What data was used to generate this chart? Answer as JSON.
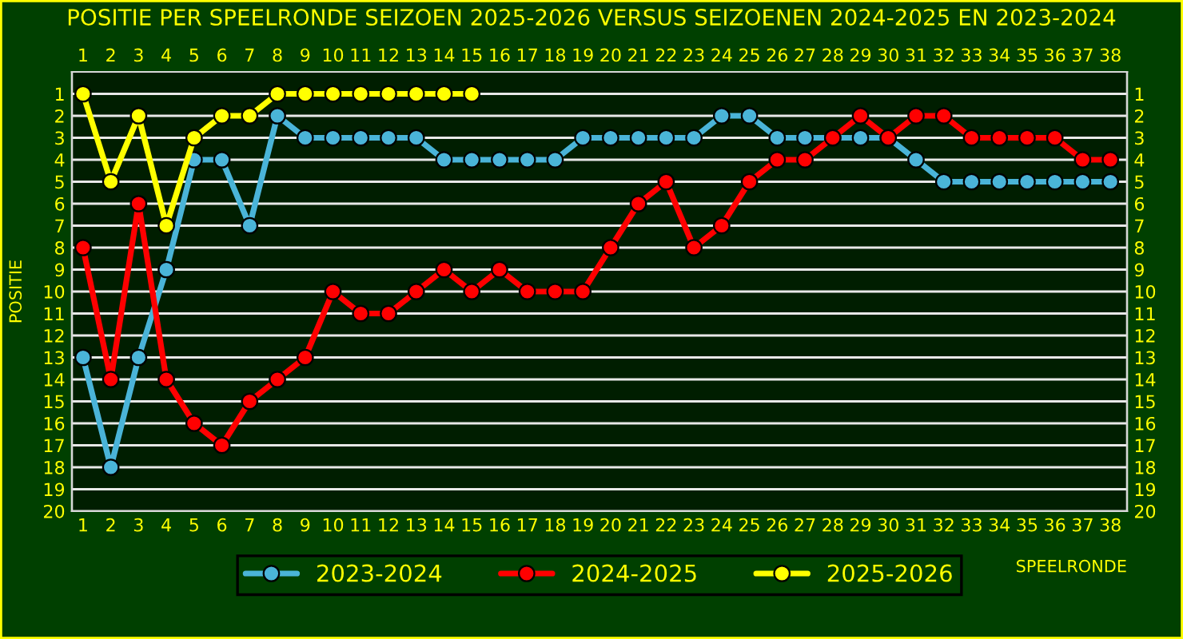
{
  "chart_data": {
    "type": "line",
    "title": "POSITIE PER SPEELRONDE SEIZOEN 2025-2026 VERSUS SEIZOENEN 2024-2025 EN 2023-2024",
    "xlabel": "SPEELRONDE",
    "ylabel": "POSITIE",
    "x": [
      1,
      2,
      3,
      4,
      5,
      6,
      7,
      8,
      9,
      10,
      11,
      12,
      13,
      14,
      15,
      16,
      17,
      18,
      19,
      20,
      21,
      22,
      23,
      24,
      25,
      26,
      27,
      28,
      29,
      30,
      31,
      32,
      33,
      34,
      35,
      36,
      37,
      38
    ],
    "series": [
      {
        "name": "2023-2024",
        "color": "#4ab4d8",
        "values": [
          13,
          18,
          13,
          9,
          4,
          4,
          7,
          2,
          3,
          3,
          3,
          3,
          3,
          4,
          4,
          4,
          4,
          4,
          3,
          3,
          3,
          3,
          3,
          2,
          2,
          3,
          3,
          3,
          3,
          3,
          4,
          5,
          5,
          5,
          5,
          5,
          5,
          5
        ]
      },
      {
        "name": "2024-2025",
        "color": "#ff0000",
        "values": [
          8,
          14,
          6,
          14,
          16,
          17,
          15,
          14,
          13,
          10,
          11,
          11,
          10,
          9,
          10,
          9,
          10,
          10,
          10,
          8,
          6,
          5,
          8,
          7,
          5,
          4,
          4,
          3,
          2,
          3,
          2,
          2,
          3,
          3,
          3,
          3,
          4,
          4
        ]
      },
      {
        "name": "2025-2026",
        "color": "#ffff00",
        "x": [
          1,
          2,
          3,
          4,
          5,
          6,
          7,
          8,
          9,
          10,
          11,
          12,
          13,
          14,
          15
        ],
        "values": [
          1,
          5,
          2,
          7,
          3,
          2,
          2,
          1,
          1,
          1,
          1,
          1,
          1,
          1,
          1
        ]
      }
    ],
    "xlim": [
      0.6,
      38.6
    ],
    "xticks": [
      1,
      2,
      3,
      4,
      5,
      6,
      7,
      8,
      9,
      10,
      11,
      12,
      13,
      14,
      15,
      16,
      17,
      18,
      19,
      20,
      21,
      22,
      23,
      24,
      25,
      26,
      27,
      28,
      29,
      30,
      31,
      32,
      33,
      34,
      35,
      36,
      37,
      38
    ],
    "x2lim": [
      0.6,
      38.6
    ],
    "x2ticks": [
      1,
      2,
      3,
      4,
      5,
      6,
      7,
      8,
      9,
      10,
      11,
      12,
      13,
      14,
      15,
      16,
      17,
      18,
      19,
      20,
      21,
      22,
      23,
      24,
      25,
      26,
      27,
      28,
      29,
      30,
      31,
      32,
      33,
      34,
      35,
      36,
      37,
      38
    ],
    "ylim": [
      20,
      0
    ],
    "yticks": [
      1,
      2,
      3,
      4,
      5,
      6,
      7,
      8,
      9,
      10,
      11,
      12,
      13,
      14,
      15,
      16,
      17,
      18,
      19,
      20
    ],
    "y2lim": [
      20,
      0
    ],
    "y2ticks": [
      1,
      2,
      3,
      4,
      5,
      6,
      7,
      8,
      9,
      10,
      11,
      12,
      13,
      14,
      15,
      16,
      17,
      18,
      19,
      20
    ],
    "grid": "y",
    "legend": "bottom",
    "marker": "circle",
    "line_style": "solid"
  }
}
